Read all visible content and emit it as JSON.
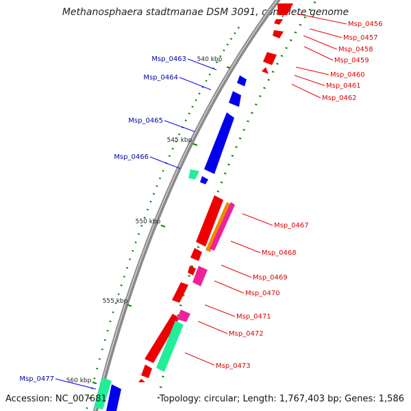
{
  "title": "Methanosphaera stadtmanae DSM 3091, complete genome",
  "accession": "Accession: NC_007681",
  "summary": "Topology: circular; Length: 1,767,403 bp; Genes: 1,586",
  "colors": {
    "backbone": "#8a8a8a",
    "forward": "#0000ee",
    "reverse": "#ee0000",
    "teal": "#22ee99",
    "orange": "#ee8800",
    "magenta": "#ee2299",
    "tick": "#008800",
    "forward_label": "#0000aa",
    "reverse_label": "#dd0000"
  },
  "ticks": [
    "540 kbp",
    "545 kbp",
    "550 kbp",
    "555 kbp",
    "560 kbp"
  ],
  "genes_left": [
    "Msp_0463",
    "Msp_0464",
    "Msp_0465",
    "Msp_0466",
    "Msp_0477"
  ],
  "genes_right": [
    "Msp_0456",
    "Msp_0457",
    "Msp_0458",
    "Msp_0459",
    "Msp_0460",
    "Msp_0461",
    "Msp_0462",
    "Msp_0467",
    "Msp_0468",
    "Msp_0469",
    "Msp_0470",
    "Msp_0471",
    "Msp_0472",
    "Msp_0473"
  ]
}
